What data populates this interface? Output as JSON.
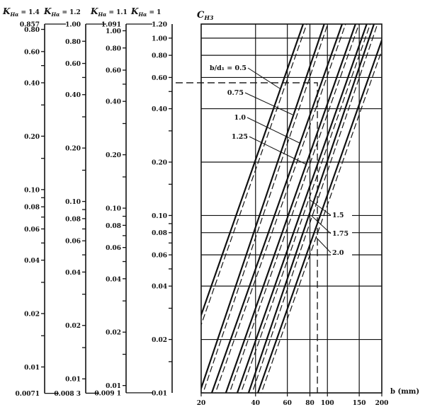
{
  "chart_data": [
    {
      "type": "table",
      "subtype": "nomogram-scales",
      "scale": "log",
      "axes": [
        {
          "header": "K",
          "sub": "Hα",
          "value": "= 1.4",
          "factor": 1.4,
          "top_label": "0.857",
          "bottom_label": "0.0071",
          "ticks": [
            "0.80",
            "0.60",
            "0.40",
            "0.20",
            "0.10",
            "0.08",
            "0.06",
            "0.04",
            "0.02",
            "0.01"
          ]
        },
        {
          "header": "K",
          "sub": "Hα",
          "value": "= 1.2",
          "factor": 1.2,
          "top_label": "1.00",
          "bottom_label": "0.008 3",
          "ticks": [
            "0.80",
            "0.60",
            "0.40",
            "0.20",
            "0.10",
            "0.08",
            "0.06",
            "0.04",
            "0.02",
            "0.01"
          ]
        },
        {
          "header": "K",
          "sub": "Hα",
          "value": "= 1.1",
          "factor": 1.1,
          "top_label": "1.091",
          "bottom_label": "0.009 1",
          "ticks": [
            "1.00",
            "0.80",
            "0.60",
            "0.40",
            "0.20",
            "0.10",
            "0.08",
            "0.06",
            "0.04",
            "0.02",
            "0.01"
          ]
        },
        {
          "header": "K",
          "sub": "Hα",
          "value": "= 1",
          "factor": 1.0,
          "top_label": "1.20",
          "bottom_label": "0.01",
          "ticks": [
            "1.00",
            "0.80",
            "0.60",
            "0.40",
            "0.20",
            "0.10",
            "0.08",
            "0.06",
            "0.04",
            "0.02"
          ]
        }
      ],
      "minor_ticks": [
        0.5,
        0.3,
        0.15,
        0.09,
        0.07,
        0.05,
        0.03,
        0.015
      ]
    },
    {
      "type": "line",
      "ylabel": "C",
      "ylabel_sub": "H3",
      "xlabel": "b  (mm)",
      "xscale": "log",
      "yscale": "log",
      "xlim": [
        20,
        200
      ],
      "ylim": [
        0.01,
        1.2
      ],
      "grid": true,
      "x_ticks": [
        "20",
        "40",
        "60",
        "80",
        "100",
        "150",
        "200"
      ],
      "x_grid": [
        40,
        60,
        80,
        100,
        150
      ],
      "y_grid": [
        1.0,
        0.8,
        0.6,
        0.4,
        0.2,
        0.1,
        0.08,
        0.06,
        0.04,
        0.02
      ],
      "series": [
        {
          "name": "b/d₁ = 0.5",
          "solid": [
            [
              20,
              0.0275
            ],
            [
              73.4,
              1.2
            ]
          ],
          "dashed": [
            [
              20.9,
              0.0275
            ],
            [
              76.8,
              1.2
            ]
          ]
        },
        {
          "name": "0.75",
          "solid": [
            [
              19.6,
              0.01
            ],
            [
              96,
              1.2
            ]
          ],
          "dashed": [
            [
              20.5,
              0.01
            ],
            [
              100.4,
              1.2
            ]
          ]
        },
        {
          "name": "1.0",
          "solid": [
            [
              22.9,
              0.01
            ],
            [
              120.6,
              1.2
            ]
          ],
          "dashed": [
            [
              24.0,
              0.01
            ],
            [
              126.1,
              1.2
            ]
          ]
        },
        {
          "name": "1.25",
          "solid": [
            [
              27.4,
              0.01
            ],
            [
              143,
              1.2
            ]
          ],
          "dashed": [
            [
              28.7,
              0.01
            ],
            [
              149.6,
              1.2
            ]
          ]
        },
        {
          "name": "1.5",
          "solid": [
            [
              31.7,
              0.01
            ],
            [
              165,
              1.2
            ]
          ],
          "dashed": [
            [
              33.2,
              0.01
            ],
            [
              172.6,
              1.2
            ]
          ]
        },
        {
          "name": "1.75",
          "solid": [
            [
              36.6,
              0.01
            ],
            [
              181,
              1.2
            ]
          ],
          "dashed": [
            [
              38.3,
              0.01
            ],
            [
              189.3,
              1.2
            ]
          ]
        },
        {
          "name": "2.0",
          "solid": [
            [
              41.2,
              0.01
            ],
            [
              215,
              1.2
            ]
          ],
          "dashed": [
            [
              43.1,
              0.01
            ],
            [
              225,
              1.2
            ]
          ]
        }
      ],
      "example_path": {
        "C": 0.56,
        "b": 88
      }
    }
  ]
}
